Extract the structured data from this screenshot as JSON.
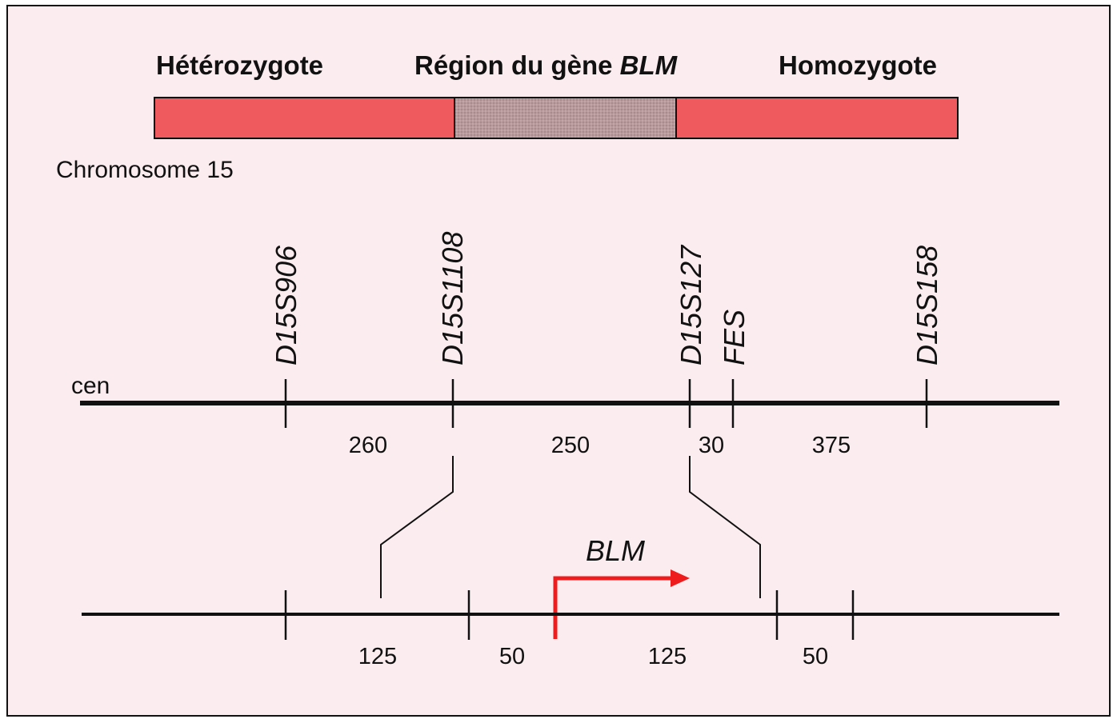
{
  "header": {
    "left": "Hétérozygote",
    "middle_prefix": "Région du gène ",
    "middle_gene": "BLM",
    "right": "Homozygote"
  },
  "chromosome_label": "Chromosome 15",
  "centromere_label": "cen",
  "markers": [
    "D15S906",
    "D15S1108",
    "D15S127",
    "FES",
    "D15S158"
  ],
  "upper_distances": [
    "260",
    "250",
    "30",
    "375"
  ],
  "lower_distances": [
    "125",
    "50",
    "125",
    "50"
  ],
  "gene_label": "BLM",
  "colors": {
    "background": "#fbecef",
    "heterozygote_bar": "#ef5a5e",
    "blm_region_bar": "#b89a9c",
    "homozygote_bar": "#ef5a5e",
    "gene_arrow": "#ee1c1c",
    "line": "#111111"
  }
}
